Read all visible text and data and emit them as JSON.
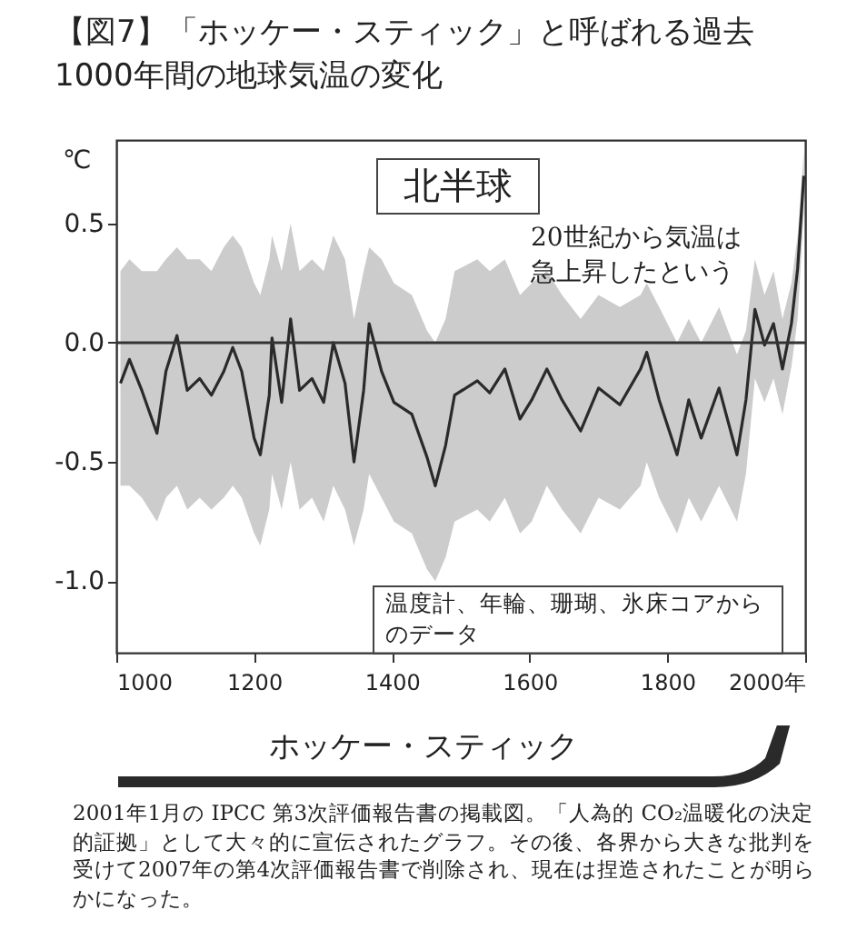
{
  "chart_data": {
    "type": "line",
    "title": "【図7】「ホッケー・スティック」と呼ばれる過去1000年間の地球気温の変化",
    "ylabel": "℃",
    "xlim": [
      1000,
      2000
    ],
    "xticks": [
      1000,
      1200,
      1400,
      1600,
      1800,
      {
        "value": 2000,
        "label": "2000年"
      }
    ],
    "ylim": [
      -1.3,
      0.85
    ],
    "yticks": [
      {
        "value": -1,
        "label": "-1.0"
      },
      {
        "value": -0.5,
        "label": "-0.5"
      },
      {
        "value": 0,
        "label": "0.0"
      },
      {
        "value": 0.5,
        "label": "0.5"
      }
    ],
    "grid": false,
    "ref_lines": [
      {
        "axis": "y",
        "value": 0,
        "color": "#333333"
      }
    ],
    "annotations": [
      "北半球",
      "20世紀から気温は急上昇したという",
      "温度計、年輪、珊瑚、氷床コアからのデータ",
      "ホッケー・スティック",
      "2001年1月の IPCC 第3次評価報告書の掲載図。「人為的 CO₂温暖化の決定的証拠」として大々的に宣伝されたグラフ。その後、各界から大きな批判を受けて2007年の第4次評価報告書で削除され、現在は捏造されたことが明らかになった。"
    ],
    "series": [
      {
        "color": "#2a2a2a",
        "x": [
          1006,
          1019,
          1037,
          1059,
          1072,
          1088,
          1103,
          1121,
          1138,
          1156,
          1169,
          1182,
          1200,
          1209,
          1222,
          1226,
          1240,
          1253,
          1266,
          1284,
          1301,
          1315,
          1332,
          1345,
          1359,
          1367,
          1385,
          1403,
          1429,
          1451,
          1463,
          1478,
          1491,
          1524,
          1542,
          1564,
          1586,
          1603,
          1625,
          1647,
          1674,
          1700,
          1731,
          1761,
          1770,
          1788,
          1814,
          1831,
          1849,
          1875,
          1901,
          1914,
          1927,
          1941,
          1954,
          1967,
          1980,
          1989,
          1998
        ],
        "values": [
          -0.17,
          -0.07,
          -0.2,
          -0.38,
          -0.12,
          0.03,
          -0.2,
          -0.15,
          -0.22,
          -0.12,
          -0.02,
          -0.12,
          -0.4,
          -0.47,
          -0.22,
          0.02,
          -0.25,
          0.1,
          -0.2,
          -0.15,
          -0.25,
          0.0,
          -0.17,
          -0.5,
          -0.2,
          0.08,
          -0.12,
          -0.25,
          -0.3,
          -0.48,
          -0.6,
          -0.43,
          -0.22,
          -0.16,
          -0.21,
          -0.11,
          -0.32,
          -0.24,
          -0.11,
          -0.24,
          -0.37,
          -0.19,
          -0.26,
          -0.11,
          -0.04,
          -0.24,
          -0.47,
          -0.24,
          -0.4,
          -0.19,
          -0.47,
          -0.24,
          0.14,
          -0.01,
          0.08,
          -0.11,
          0.08,
          0.31,
          0.7
        ],
        "lower": [
          -0.6,
          -0.6,
          -0.65,
          -0.75,
          -0.65,
          -0.6,
          -0.7,
          -0.65,
          -0.7,
          -0.65,
          -0.6,
          -0.65,
          -0.8,
          -0.85,
          -0.7,
          -0.55,
          -0.7,
          -0.5,
          -0.7,
          -0.65,
          -0.75,
          -0.6,
          -0.7,
          -0.85,
          -0.7,
          -0.55,
          -0.65,
          -0.75,
          -0.8,
          -0.95,
          -1.0,
          -0.9,
          -0.75,
          -0.7,
          -0.75,
          -0.65,
          -0.8,
          -0.75,
          -0.6,
          -0.7,
          -0.8,
          -0.65,
          -0.7,
          -0.6,
          -0.5,
          -0.65,
          -0.8,
          -0.65,
          -0.75,
          -0.6,
          -0.75,
          -0.55,
          -0.15,
          -0.25,
          -0.15,
          -0.3,
          -0.1,
          0.1,
          0.55
        ],
        "upper": [
          0.3,
          0.35,
          0.3,
          0.3,
          0.35,
          0.4,
          0.35,
          0.35,
          0.3,
          0.4,
          0.45,
          0.4,
          0.25,
          0.2,
          0.35,
          0.45,
          0.3,
          0.5,
          0.3,
          0.35,
          0.3,
          0.45,
          0.35,
          0.1,
          0.3,
          0.4,
          0.35,
          0.25,
          0.2,
          0.05,
          0.0,
          0.1,
          0.3,
          0.35,
          0.3,
          0.35,
          0.2,
          0.25,
          0.3,
          0.2,
          0.1,
          0.2,
          0.15,
          0.2,
          0.25,
          0.15,
          0.0,
          0.1,
          0.0,
          0.15,
          -0.05,
          0.05,
          0.35,
          0.2,
          0.3,
          0.1,
          0.25,
          0.45,
          0.8
        ]
      }
    ]
  }
}
